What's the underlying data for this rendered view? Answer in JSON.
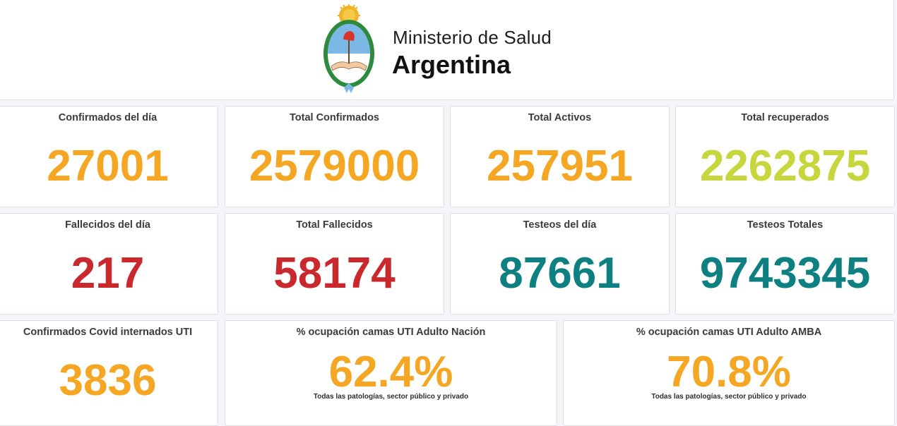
{
  "header": {
    "line1": "Ministerio de Salud",
    "line2": "Argentina",
    "logo": "escudo-nacional-argentina"
  },
  "colors": {
    "orange": "#f5a623",
    "green": "#c6d63c",
    "red": "#c9282d",
    "teal": "#0e8082"
  },
  "cards": [
    {
      "title": "Confirmados del día",
      "value": "27001",
      "color": "#f5a623"
    },
    {
      "title": "Total Confirmados",
      "value": "2579000",
      "color": "#f5a623"
    },
    {
      "title": "Total Activos",
      "value": "257951",
      "color": "#f5a623"
    },
    {
      "title": "Total recuperados",
      "value": "2262875",
      "color": "#c6d63c"
    },
    {
      "title": "Fallecidos del día",
      "value": "217",
      "color": "#c9282d"
    },
    {
      "title": "Total Fallecidos",
      "value": "58174",
      "color": "#c9282d"
    },
    {
      "title": "Testeos del día",
      "value": "87661",
      "color": "#0e8082"
    },
    {
      "title": "Testeos Totales",
      "value": "9743345",
      "color": "#0e8082"
    },
    {
      "title": "Confirmados Covid internados UTI",
      "value": "3836",
      "color": "#f5a623"
    },
    {
      "title": "% ocupación camas UTI Adulto Nación",
      "value": "62.4%",
      "note": "Todas las patologías, sector público y privado",
      "color": "#f5a623"
    },
    {
      "title": "% ocupación camas UTI Adulto AMBA",
      "value": "70.8%",
      "note": "Todas las patologías, sector público y privado",
      "color": "#f5a623"
    }
  ]
}
